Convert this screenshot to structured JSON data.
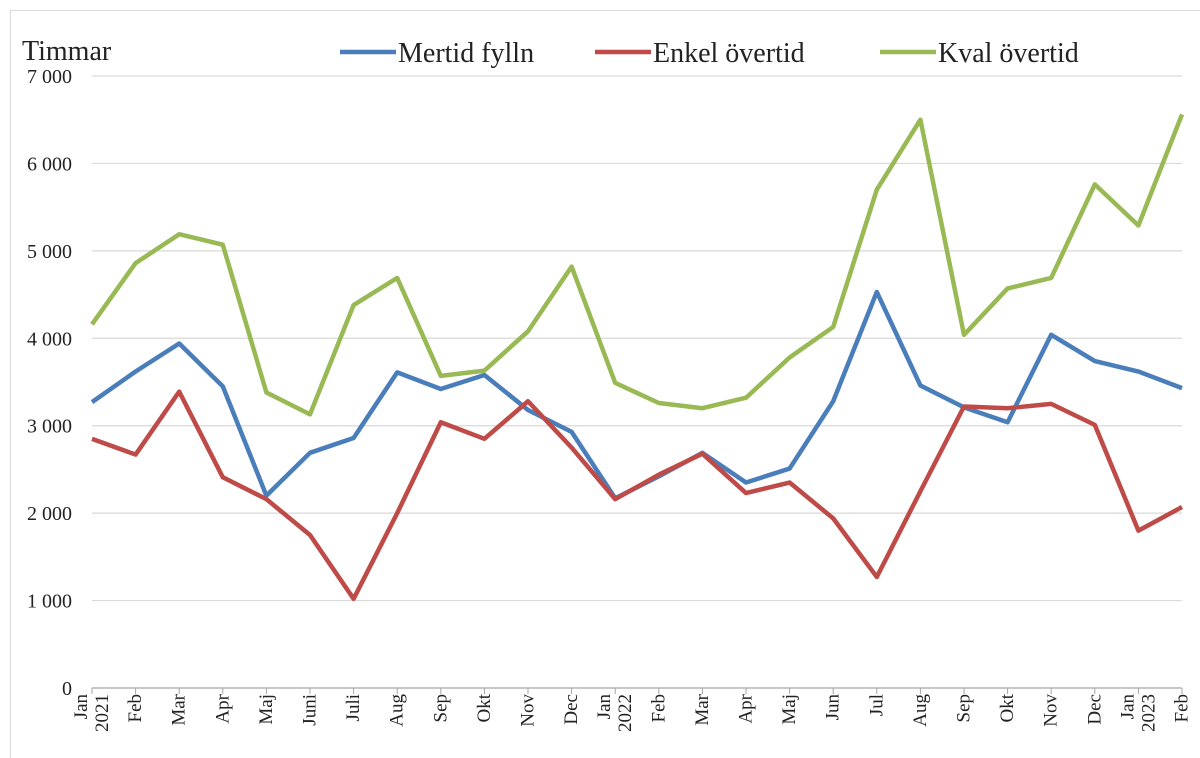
{
  "chart_data": {
    "type": "line",
    "ylabel": "Timmar",
    "categories": [
      "Jan\n2021",
      "Feb",
      "Mar",
      "Apr",
      "Maj",
      "Juni",
      "Juli",
      "Aug",
      "Sep",
      "Okt",
      "Nov",
      "Dec",
      "Jan\n2022",
      "Feb",
      "Mar",
      "Apr",
      "Maj",
      "Jun",
      "Jul",
      "Aug",
      "Sep",
      "Okt",
      "Nov",
      "Dec",
      "Jan\n2023",
      "Feb"
    ],
    "series": [
      {
        "name": "Mertid fylln",
        "color": "#4a7ebb",
        "values": [
          3270,
          3620,
          3940,
          3450,
          2200,
          2690,
          2860,
          3610,
          3420,
          3580,
          3180,
          2930,
          2170,
          2420,
          2690,
          2350,
          2510,
          3280,
          4530,
          3460,
          3210,
          3040,
          4040,
          3740,
          3620,
          3430
        ]
      },
      {
        "name": "Enkel övertid",
        "color": "#be4b48",
        "values": [
          2850,
          2670,
          3390,
          2410,
          2160,
          1750,
          1020,
          2000,
          3040,
          2850,
          3280,
          2750,
          2160,
          2440,
          2680,
          2230,
          2350,
          1940,
          1270,
          2250,
          3220,
          3200,
          3250,
          3010,
          1800,
          2070
        ]
      },
      {
        "name": "Kval övertid",
        "color": "#98b954",
        "values": [
          4160,
          4860,
          5190,
          5070,
          3380,
          3130,
          4380,
          4690,
          3570,
          3630,
          4080,
          4820,
          3490,
          3260,
          3200,
          3320,
          3780,
          4130,
          5700,
          6500,
          4040,
          4570,
          4690,
          5760,
          5290,
          6560
        ]
      }
    ],
    "ylim": [
      0,
      7000
    ],
    "yticks": [
      0,
      {
        "value": 1000,
        "label": "1 000"
      },
      {
        "value": 2000,
        "label": "2 000"
      },
      {
        "value": 3000,
        "label": "3 000"
      },
      {
        "value": 4000,
        "label": "4 000"
      },
      {
        "value": 5000,
        "label": "5 000"
      },
      {
        "value": 6000,
        "label": "6 000"
      },
      {
        "value": 7000,
        "label": "7 000"
      }
    ],
    "grid": true,
    "legend": "top"
  }
}
